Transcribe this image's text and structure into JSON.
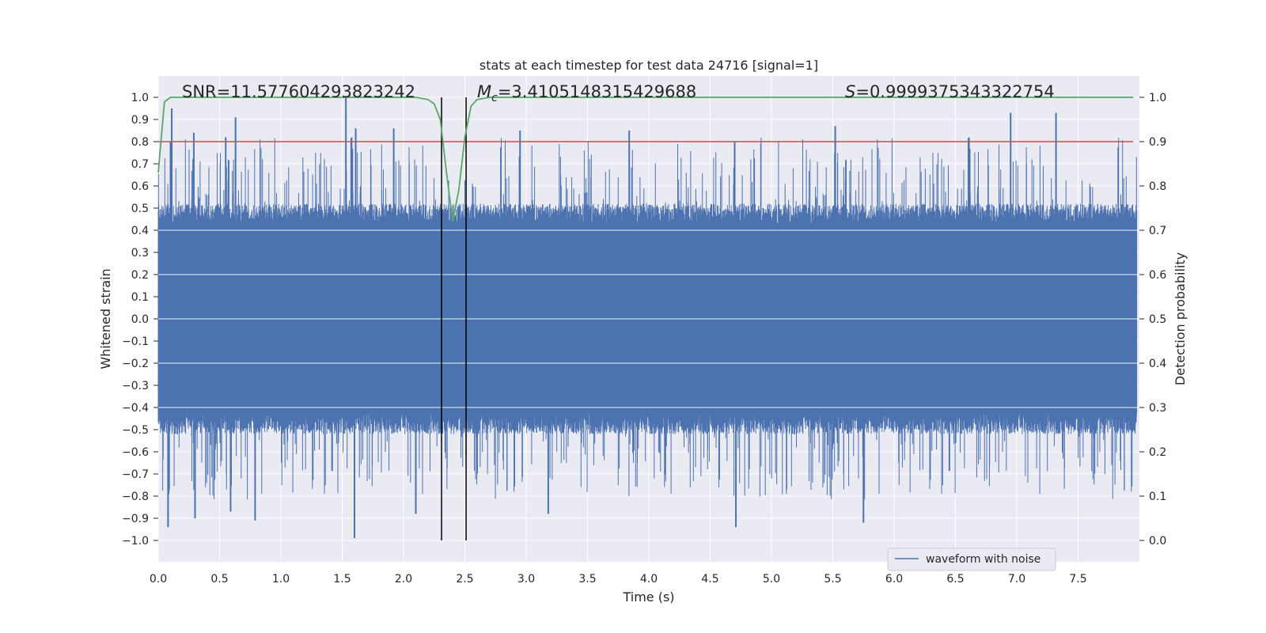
{
  "chart_data": {
    "type": "line",
    "title": "stats at each timestep for test data 24716 [signal=1]",
    "xlabel": "Time (s)",
    "ylabel_left": "Whitened strain",
    "ylabel_right": "Detection probability",
    "xlim": [
      0.0,
      8.0
    ],
    "ylim_left": [
      -1.1,
      1.1
    ],
    "ylim_right": [
      -0.05,
      1.05
    ],
    "x_ticks": [
      "0.0",
      "0.5",
      "1.0",
      "1.5",
      "2.0",
      "2.5",
      "3.0",
      "3.5",
      "4.0",
      "4.5",
      "5.0",
      "5.5",
      "6.0",
      "6.5",
      "7.0",
      "7.5"
    ],
    "y_ticks_left": [
      "1.0",
      "0.9",
      "0.8",
      "0.7",
      "0.6",
      "0.5",
      "0.4",
      "0.3",
      "0.2",
      "0.1",
      "0.0",
      "−0.1",
      "−0.2",
      "−0.3",
      "−0.4",
      "−0.5",
      "−0.6",
      "−0.7",
      "−0.8",
      "−0.9",
      "−1.0"
    ],
    "y_ticks_right": [
      "1.0",
      "0.9",
      "0.8",
      "0.7",
      "0.6",
      "0.5",
      "0.4",
      "0.3",
      "0.2",
      "0.1",
      "0.0"
    ],
    "grid": true,
    "annotations": {
      "snr": "SNR=11.577604293823242",
      "mc_symbol": "M",
      "mc_subscript": "c",
      "mc_value": "=3.4105148315429688",
      "s_symbol": "S",
      "s_value": "=0.9999375343322754"
    },
    "legend": {
      "label": "waveform with noise",
      "position": "lower-right"
    },
    "colors": {
      "waveform": "#4c72b0",
      "probability": "#55a868",
      "threshold": "#c44e52",
      "markers": "#000000",
      "background": "#eaeaf2",
      "grid": "#ffffff"
    },
    "threshold_probability": 0.9,
    "vertical_markers_s": [
      2.31,
      2.51
    ],
    "waveform": {
      "description_envelope": "dense noise spanning approximately -0.5 to 0.5 with spikes",
      "spikes": [
        {
          "t": 0.1,
          "v": 0.8
        },
        {
          "t": 0.11,
          "v": 0.95
        },
        {
          "t": 0.29,
          "v": 0.84
        },
        {
          "t": 0.55,
          "v": 0.82
        },
        {
          "t": 0.63,
          "v": 0.91
        },
        {
          "t": 1.53,
          "v": 1.0
        },
        {
          "t": 1.61,
          "v": 0.86
        },
        {
          "t": 1.92,
          "v": 0.86
        },
        {
          "t": 2.95,
          "v": 0.85
        },
        {
          "t": 3.84,
          "v": 0.85
        },
        {
          "t": 4.7,
          "v": 0.8
        },
        {
          "t": 5.52,
          "v": 0.87
        },
        {
          "t": 6.95,
          "v": 0.93
        },
        {
          "t": 7.32,
          "v": 0.93
        },
        {
          "t": 0.08,
          "v": -0.94
        },
        {
          "t": 0.3,
          "v": -0.9
        },
        {
          "t": 0.59,
          "v": -0.87
        },
        {
          "t": 0.79,
          "v": -0.91
        },
        {
          "t": 1.6,
          "v": -0.99
        },
        {
          "t": 2.1,
          "v": -0.88
        },
        {
          "t": 3.18,
          "v": -0.88
        },
        {
          "t": 4.71,
          "v": -0.94
        },
        {
          "t": 5.75,
          "v": -0.92
        }
      ]
    },
    "detection_probability": {
      "x": [
        0.0,
        0.05,
        0.1,
        0.2,
        0.5,
        1.0,
        1.5,
        2.0,
        2.1,
        2.2,
        2.25,
        2.3,
        2.35,
        2.4,
        2.45,
        2.5,
        2.55,
        2.6,
        2.7,
        3.0,
        5.0,
        7.0,
        7.95
      ],
      "y": [
        0.83,
        0.99,
        1.0,
        1.0,
        1.0,
        1.0,
        1.0,
        1.0,
        1.0,
        0.995,
        0.985,
        0.95,
        0.83,
        0.72,
        0.79,
        0.91,
        0.98,
        0.995,
        1.0,
        1.0,
        1.0,
        1.0,
        1.0
      ]
    }
  }
}
